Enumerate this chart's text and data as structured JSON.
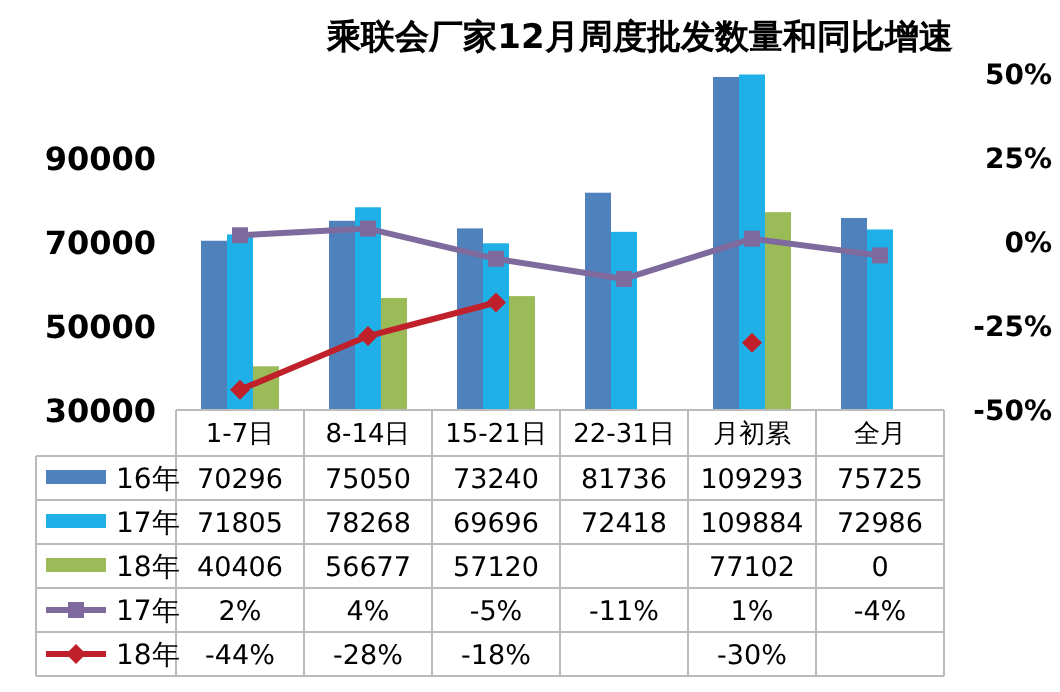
{
  "chart_data": {
    "type": "bar",
    "title": "乘联会厂家12月周度批发数量和同比增速",
    "categories": [
      "1-7日",
      "8-14日",
      "15-21日",
      "22-31日",
      "月初累",
      "全月"
    ],
    "ylim": [
      30000,
      110000
    ],
    "yticks": [
      30000,
      50000,
      70000,
      90000
    ],
    "y2lim": [
      -50,
      50
    ],
    "y2ticks": [
      {
        "value": -50,
        "label": "-50%"
      },
      {
        "value": -25,
        "label": "-25%"
      },
      {
        "value": 0,
        "label": "0%"
      },
      {
        "value": 25,
        "label": "25%"
      },
      {
        "value": 50,
        "label": "50%"
      }
    ],
    "grid": false,
    "legend": "bottom",
    "series": [
      {
        "name": "16年",
        "color": "#4f81bd",
        "values": [
          70296,
          75050,
          73240,
          81736,
          109293,
          75725
        ],
        "value_labels": [
          "70296",
          "75050",
          "73240",
          "81736",
          "109293",
          "75725"
        ]
      },
      {
        "name": "17年",
        "color": "#1fb0e8",
        "values": [
          71805,
          78268,
          69696,
          72418,
          109884,
          72986
        ],
        "value_labels": [
          "71805",
          "78268",
          "69696",
          "72418",
          "109884",
          "72986"
        ]
      },
      {
        "name": "18年",
        "color": "#9bbb59",
        "values": [
          40406,
          56677,
          57120,
          null,
          77102,
          null
        ],
        "value_labels": [
          "40406",
          "56677",
          "57120",
          null,
          "77102",
          "0"
        ]
      },
      {
        "name": "17年",
        "type": "line",
        "axis": "y2",
        "marker": "square",
        "color": "#7e6a9c",
        "values": [
          2,
          4,
          -5,
          -11,
          1,
          -4
        ],
        "value_labels": [
          "2%",
          "4%",
          "-5%",
          "-11%",
          "1%",
          "-4%"
        ]
      },
      {
        "name": "18年",
        "type": "line",
        "axis": "y2",
        "marker": "diamond",
        "color": "#c0202a",
        "values": [
          -44,
          -28,
          -18,
          null,
          -30,
          null
        ],
        "value_labels": [
          "-44%",
          "-28%",
          "-18%",
          null,
          "-30%",
          null
        ]
      }
    ]
  }
}
